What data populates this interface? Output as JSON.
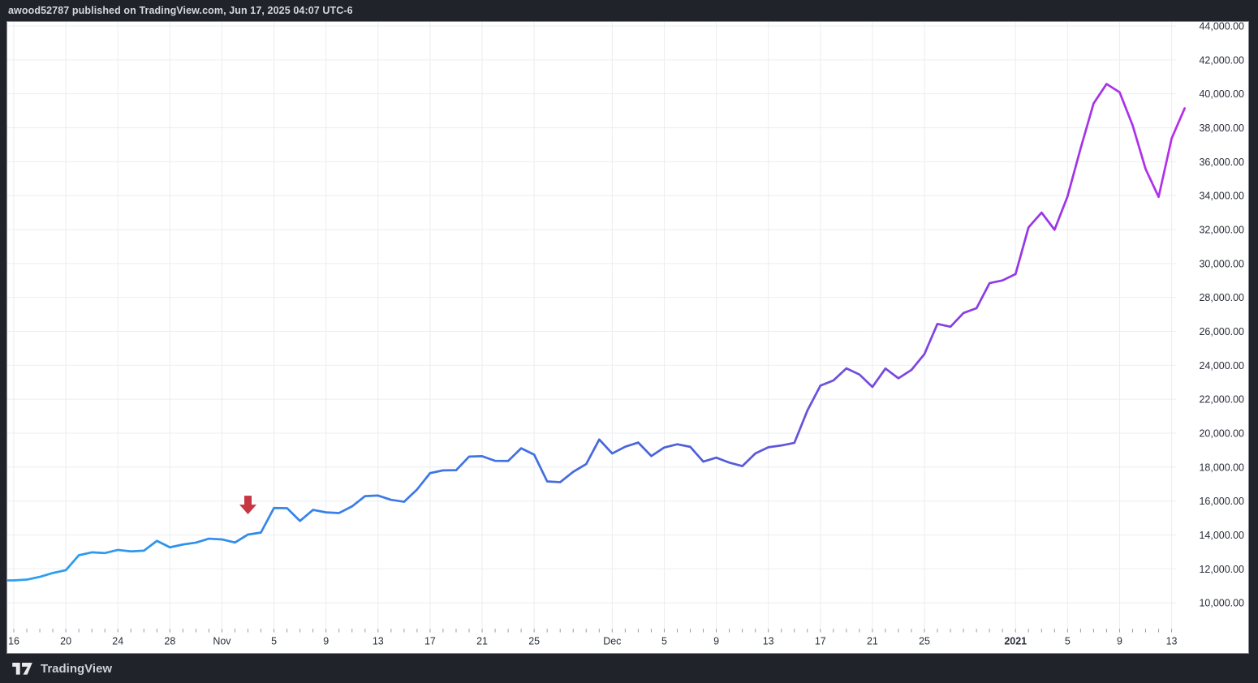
{
  "header": {
    "attribution": "awood52787 published on TradingView.com, Jun 17, 2025 04:07 UTC-6"
  },
  "footer": {
    "brand": "TradingView"
  },
  "colors": {
    "chrome_bg": "#20232a",
    "chrome_text": "#d6d8dc",
    "panel_bg": "#ffffff",
    "panel_border": "#85878d",
    "grid": "#ebedf0",
    "axis_text": "#2a2e39",
    "day_tick": "#9a9da4",
    "arrow": "#c63743",
    "line_gradient": [
      "#2ba2f2",
      "#2e92ec",
      "#3a7ee8",
      "#4370e2",
      "#4c61d9",
      "#6f4fdd",
      "#9638e5",
      "#b92ee9"
    ]
  },
  "chart_data": {
    "type": "line",
    "title": "",
    "x_unit": "date",
    "start_date": "2020-10-16",
    "interval": "1D",
    "values": [
      11322,
      11370,
      11528,
      11760,
      11920,
      12802,
      12973,
      12931,
      13118,
      13031,
      13070,
      13654,
      13271,
      13437,
      13546,
      13781,
      13737,
      13550,
      14023,
      14144,
      15590,
      15580,
      14823,
      15479,
      15332,
      15290,
      15684,
      16291,
      16320,
      16068,
      15955,
      16685,
      17645,
      17804,
      17817,
      18621,
      18642,
      18370,
      18365,
      19107,
      18729,
      17153,
      17108,
      17719,
      18178,
      19625,
      18803,
      19205,
      19446,
      18650,
      19154,
      19345,
      19191,
      18321,
      18554,
      18264,
      18058,
      18803,
      19167,
      19273,
      19426,
      21335,
      22797,
      23107,
      23821,
      23455,
      22720,
      23810,
      23232,
      23729,
      24665,
      26437,
      26272,
      27084,
      27362,
      28841,
      29002,
      29374,
      32128,
      32999,
      31989,
      33949,
      36769,
      39432,
      40582,
      40088,
      38150,
      35566,
      33922,
      37371,
      39144
    ],
    "ylim": [
      8470,
      44240
    ],
    "grid": true,
    "legend": false,
    "y_tick_values": [
      44000,
      42000,
      40000,
      38000,
      36000,
      34000,
      32000,
      30000,
      28000,
      26000,
      24000,
      22000,
      20000,
      18000,
      16000,
      14000,
      12000,
      10000
    ],
    "y_tick_format": "#,##0.00",
    "x_ticks": [
      {
        "label": "16",
        "day": 0
      },
      {
        "label": "20",
        "day": 4
      },
      {
        "label": "24",
        "day": 8
      },
      {
        "label": "28",
        "day": 12
      },
      {
        "label": "Nov",
        "day": 16
      },
      {
        "label": "5",
        "day": 20
      },
      {
        "label": "9",
        "day": 24
      },
      {
        "label": "13",
        "day": 28
      },
      {
        "label": "17",
        "day": 32
      },
      {
        "label": "21",
        "day": 36
      },
      {
        "label": "25",
        "day": 40
      },
      {
        "label": "Dec",
        "day": 46
      },
      {
        "label": "5",
        "day": 50
      },
      {
        "label": "9",
        "day": 54
      },
      {
        "label": "13",
        "day": 58
      },
      {
        "label": "17",
        "day": 62
      },
      {
        "label": "21",
        "day": 66
      },
      {
        "label": "25",
        "day": 70
      },
      {
        "label": "2021",
        "day": 77,
        "bold": true
      },
      {
        "label": "5",
        "day": 81
      },
      {
        "label": "9",
        "day": 85
      },
      {
        "label": "13",
        "day": 89
      }
    ],
    "annotations": [
      {
        "type": "arrow-down",
        "day": 18,
        "date": "2020-11-03",
        "tip_value": 15218,
        "color": "#c63743"
      }
    ]
  }
}
